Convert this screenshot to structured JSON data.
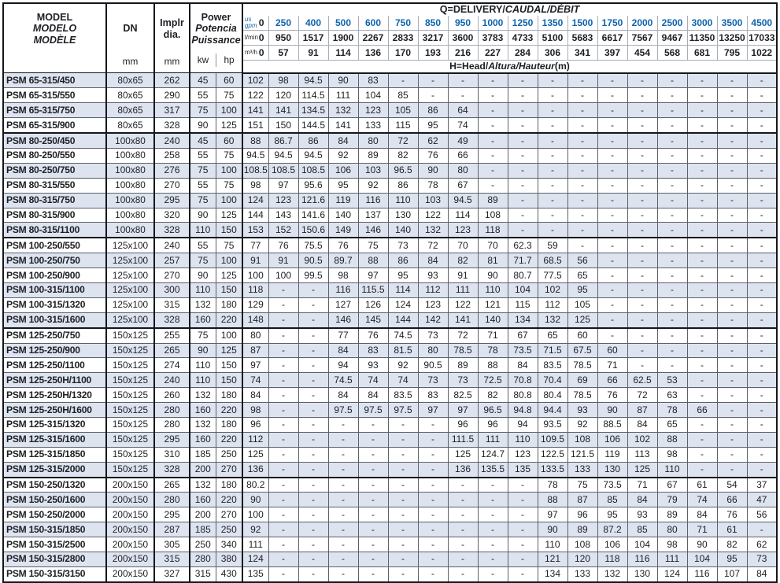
{
  "colors": {
    "accent_blue": "#0d63ab",
    "row_stripe": "#dde4f0",
    "grid_line": "#5c6068",
    "heavy_line": "#14171b",
    "text": "#1d1f24"
  },
  "header": {
    "model": {
      "line1": "MODEL",
      "line2": "MODELO",
      "line3": "MODÈLE"
    },
    "dn": {
      "label": "DN",
      "unit": "mm"
    },
    "impeller": {
      "line1": "Implr",
      "line2": "dia.",
      "unit": "mm"
    },
    "power": {
      "line1": "Power",
      "line2": "Potencia",
      "line3": "Puissance",
      "unit_kw": "kw",
      "unit_hp": "hp"
    },
    "q_title_plain": "Q=DELIVERY/",
    "q_title_italic": "CAUDAL/DÉBIT",
    "h_title_plain": "H=Head/",
    "h_title_italic": "Altura/Hauteur",
    "h_title_unit": "(m)",
    "gpm_label_top": "us",
    "gpm_label_bottom": "gpm",
    "lmin_label": "l/min",
    "m3h_label": "m³/h",
    "gpm": [
      "0",
      "250",
      "400",
      "500",
      "600",
      "750",
      "850",
      "950",
      "1000",
      "1250",
      "1350",
      "1500",
      "1750",
      "2000",
      "2500",
      "3000",
      "3500",
      "4500"
    ],
    "lmin": [
      "0",
      "950",
      "1517",
      "1900",
      "2267",
      "2833",
      "3217",
      "3600",
      "3783",
      "4733",
      "5100",
      "5683",
      "6617",
      "7567",
      "9467",
      "11350",
      "13250",
      "17033"
    ],
    "m3h": [
      "0",
      "57",
      "91",
      "114",
      "136",
      "170",
      "193",
      "216",
      "227",
      "284",
      "306",
      "341",
      "397",
      "454",
      "568",
      "681",
      "795",
      "1022"
    ]
  },
  "rows": [
    {
      "model": "PSM 65-315/450",
      "dn": "80x65",
      "dia": "262",
      "kw": "45",
      "hp": "60",
      "head": [
        "102",
        "98",
        "94.5",
        "90",
        "83",
        "-",
        "-",
        "-",
        "-",
        "-",
        "-",
        "-",
        "-",
        "-",
        "-",
        "-",
        "-",
        "-"
      ]
    },
    {
      "model": "PSM 65-315/550",
      "dn": "80x65",
      "dia": "290",
      "kw": "55",
      "hp": "75",
      "head": [
        "122",
        "120",
        "114.5",
        "111",
        "104",
        "85",
        "-",
        "-",
        "-",
        "-",
        "-",
        "-",
        "-",
        "-",
        "-",
        "-",
        "-",
        "-"
      ]
    },
    {
      "model": "PSM 65-315/750",
      "dn": "80x65",
      "dia": "317",
      "kw": "75",
      "hp": "100",
      "head": [
        "141",
        "141",
        "134.5",
        "132",
        "123",
        "105",
        "86",
        "64",
        "-",
        "-",
        "-",
        "-",
        "-",
        "-",
        "-",
        "-",
        "-",
        "-"
      ]
    },
    {
      "model": "PSM 65-315/900",
      "dn": "80x65",
      "dia": "328",
      "kw": "90",
      "hp": "125",
      "head": [
        "151",
        "150",
        "144.5",
        "141",
        "133",
        "115",
        "95",
        "74",
        "-",
        "-",
        "-",
        "-",
        "-",
        "-",
        "-",
        "-",
        "-",
        "-"
      ]
    },
    {
      "model": "PSM 80-250/450",
      "dn": "100x80",
      "dia": "240",
      "kw": "45",
      "hp": "60",
      "group": true,
      "head": [
        "88",
        "86.7",
        "86",
        "84",
        "80",
        "72",
        "62",
        "49",
        "-",
        "-",
        "-",
        "-",
        "-",
        "-",
        "-",
        "-",
        "-",
        "-"
      ]
    },
    {
      "model": "PSM 80-250/550",
      "dn": "100x80",
      "dia": "258",
      "kw": "55",
      "hp": "75",
      "head": [
        "94.5",
        "94.5",
        "94.5",
        "92",
        "89",
        "82",
        "76",
        "66",
        "-",
        "-",
        "-",
        "-",
        "-",
        "-",
        "-",
        "-",
        "-",
        "-"
      ]
    },
    {
      "model": "PSM 80-250/750",
      "dn": "100x80",
      "dia": "276",
      "kw": "75",
      "hp": "100",
      "head": [
        "108.5",
        "108.5",
        "108.5",
        "106",
        "103",
        "96.5",
        "90",
        "80",
        "-",
        "-",
        "-",
        "-",
        "-",
        "-",
        "-",
        "-",
        "-",
        "-"
      ]
    },
    {
      "model": "PSM 80-315/550",
      "dn": "100x80",
      "dia": "270",
      "kw": "55",
      "hp": "75",
      "head": [
        "98",
        "97",
        "95.6",
        "95",
        "92",
        "86",
        "78",
        "67",
        "-",
        "-",
        "-",
        "-",
        "-",
        "-",
        "-",
        "-",
        "-",
        "-"
      ]
    },
    {
      "model": "PSM 80-315/750",
      "dn": "100x80",
      "dia": "295",
      "kw": "75",
      "hp": "100",
      "head": [
        "124",
        "123",
        "121.6",
        "119",
        "116",
        "110",
        "103",
        "94.5",
        "89",
        "-",
        "-",
        "-",
        "-",
        "-",
        "-",
        "-",
        "-",
        "-"
      ]
    },
    {
      "model": "PSM 80-315/900",
      "dn": "100x80",
      "dia": "320",
      "kw": "90",
      "hp": "125",
      "head": [
        "144",
        "143",
        "141.6",
        "140",
        "137",
        "130",
        "122",
        "114",
        "108",
        "-",
        "-",
        "-",
        "-",
        "-",
        "-",
        "-",
        "-",
        "-"
      ]
    },
    {
      "model": "PSM 80-315/1100",
      "dn": "100x80",
      "dia": "328",
      "kw": "110",
      "hp": "150",
      "head": [
        "153",
        "152",
        "150.6",
        "149",
        "146",
        "140",
        "132",
        "123",
        "118",
        "-",
        "-",
        "-",
        "-",
        "-",
        "-",
        "-",
        "-",
        "-"
      ]
    },
    {
      "model": "PSM 100-250/550",
      "dn": "125x100",
      "dia": "240",
      "kw": "55",
      "hp": "75",
      "group": true,
      "head": [
        "77",
        "76",
        "75.5",
        "76",
        "75",
        "73",
        "72",
        "70",
        "70",
        "62.3",
        "59",
        "-",
        "-",
        "-",
        "-",
        "-",
        "-",
        "-"
      ]
    },
    {
      "model": "PSM 100-250/750",
      "dn": "125x100",
      "dia": "257",
      "kw": "75",
      "hp": "100",
      "head": [
        "91",
        "91",
        "90.5",
        "89.7",
        "88",
        "86",
        "84",
        "82",
        "81",
        "71.7",
        "68.5",
        "56",
        "-",
        "-",
        "-",
        "-",
        "-",
        "-"
      ]
    },
    {
      "model": "PSM 100-250/900",
      "dn": "125x100",
      "dia": "270",
      "kw": "90",
      "hp": "125",
      "head": [
        "100",
        "100",
        "99.5",
        "98",
        "97",
        "95",
        "93",
        "91",
        "90",
        "80.7",
        "77.5",
        "65",
        "-",
        "-",
        "-",
        "-",
        "-",
        "-"
      ]
    },
    {
      "model": "PSM 100-315/1100",
      "dn": "125x100",
      "dia": "300",
      "kw": "110",
      "hp": "150",
      "head": [
        "118",
        "-",
        "-",
        "116",
        "115.5",
        "114",
        "112",
        "111",
        "110",
        "104",
        "102",
        "95",
        "-",
        "-",
        "-",
        "-",
        "-",
        "-"
      ]
    },
    {
      "model": "PSM 100-315/1320",
      "dn": "125x100",
      "dia": "315",
      "kw": "132",
      "hp": "180",
      "head": [
        "129",
        "-",
        "-",
        "127",
        "126",
        "124",
        "123",
        "122",
        "121",
        "115",
        "112",
        "105",
        "-",
        "-",
        "-",
        "-",
        "-",
        "-"
      ]
    },
    {
      "model": "PSM 100-315/1600",
      "dn": "125x100",
      "dia": "328",
      "kw": "160",
      "hp": "220",
      "head": [
        "148",
        "-",
        "-",
        "146",
        "145",
        "144",
        "142",
        "141",
        "140",
        "134",
        "132",
        "125",
        "-",
        "-",
        "-",
        "-",
        "-",
        "-"
      ]
    },
    {
      "model": "PSM 125-250/750",
      "dn": "150x125",
      "dia": "255",
      "kw": "75",
      "hp": "100",
      "group": true,
      "head": [
        "80",
        "-",
        "-",
        "77",
        "76",
        "74.5",
        "73",
        "72",
        "71",
        "67",
        "65",
        "60",
        "-",
        "-",
        "-",
        "-",
        "-",
        "-"
      ]
    },
    {
      "model": "PSM 125-250/900",
      "dn": "150x125",
      "dia": "265",
      "kw": "90",
      "hp": "125",
      "head": [
        "87",
        "-",
        "-",
        "84",
        "83",
        "81.5",
        "80",
        "78.5",
        "78",
        "73.5",
        "71.5",
        "67.5",
        "60",
        "-",
        "-",
        "-",
        "-",
        "-"
      ]
    },
    {
      "model": "PSM 125-250/1100",
      "dn": "150x125",
      "dia": "274",
      "kw": "110",
      "hp": "150",
      "head": [
        "97",
        "-",
        "-",
        "94",
        "93",
        "92",
        "90.5",
        "89",
        "88",
        "84",
        "83.5",
        "78.5",
        "71",
        "-",
        "-",
        "-",
        "-",
        "-"
      ]
    },
    {
      "model": "PSM 125-250H/1100",
      "dn": "150x125",
      "dia": "240",
      "kw": "110",
      "hp": "150",
      "head": [
        "74",
        "-",
        "-",
        "74.5",
        "74",
        "74",
        "73",
        "73",
        "72.5",
        "70.8",
        "70.4",
        "69",
        "66",
        "62.5",
        "53",
        "-",
        "-",
        "-"
      ]
    },
    {
      "model": "PSM 125-250H/1320",
      "dn": "150x125",
      "dia": "260",
      "kw": "132",
      "hp": "180",
      "head": [
        "84",
        "-",
        "-",
        "84",
        "84",
        "83.5",
        "83",
        "82.5",
        "82",
        "80.8",
        "80.4",
        "78.5",
        "76",
        "72",
        "63",
        "-",
        "-",
        "-"
      ]
    },
    {
      "model": "PSM 125-250H/1600",
      "dn": "150x125",
      "dia": "280",
      "kw": "160",
      "hp": "220",
      "head": [
        "98",
        "-",
        "-",
        "97.5",
        "97.5",
        "97.5",
        "97",
        "97",
        "96.5",
        "94.8",
        "94.4",
        "93",
        "90",
        "87",
        "78",
        "66",
        "-",
        "-"
      ]
    },
    {
      "model": "PSM 125-315/1320",
      "dn": "150x125",
      "dia": "280",
      "kw": "132",
      "hp": "180",
      "head": [
        "96",
        "-",
        "-",
        "-",
        "-",
        "-",
        "-",
        "96",
        "96",
        "94",
        "93.5",
        "92",
        "88.5",
        "84",
        "65",
        "-",
        "-",
        "-"
      ]
    },
    {
      "model": "PSM 125-315/1600",
      "dn": "150x125",
      "dia": "295",
      "kw": "160",
      "hp": "220",
      "head": [
        "112",
        "-",
        "-",
        "-",
        "-",
        "-",
        "-",
        "111.5",
        "111",
        "110",
        "109.5",
        "108",
        "106",
        "102",
        "88",
        "-",
        "-",
        "-"
      ]
    },
    {
      "model": "PSM 125-315/1850",
      "dn": "150x125",
      "dia": "310",
      "kw": "185",
      "hp": "250",
      "head": [
        "125",
        "-",
        "-",
        "-",
        "-",
        "-",
        "-",
        "125",
        "124.7",
        "123",
        "122.5",
        "121.5",
        "119",
        "113",
        "98",
        "-",
        "-",
        "-"
      ]
    },
    {
      "model": "PSM 125-315/2000",
      "dn": "150x125",
      "dia": "328",
      "kw": "200",
      "hp": "270",
      "head": [
        "136",
        "-",
        "-",
        "-",
        "-",
        "-",
        "-",
        "136",
        "135.5",
        "135",
        "133.5",
        "133",
        "130",
        "125",
        "110",
        "-",
        "-",
        "-"
      ]
    },
    {
      "model": "PSM 150-250/1320",
      "dn": "200x150",
      "dia": "265",
      "kw": "132",
      "hp": "180",
      "group": true,
      "head": [
        "80.2",
        "-",
        "-",
        "-",
        "-",
        "-",
        "-",
        "-",
        "-",
        "-",
        "78",
        "75",
        "73.5",
        "71",
        "67",
        "61",
        "54",
        "37"
      ]
    },
    {
      "model": "PSM 150-250/1600",
      "dn": "200x150",
      "dia": "280",
      "kw": "160",
      "hp": "220",
      "head": [
        "90",
        "-",
        "-",
        "-",
        "-",
        "-",
        "-",
        "-",
        "-",
        "-",
        "88",
        "87",
        "85",
        "84",
        "79",
        "74",
        "66",
        "47"
      ]
    },
    {
      "model": "PSM 150-250/2000",
      "dn": "200x150",
      "dia": "295",
      "kw": "200",
      "hp": "270",
      "head": [
        "100",
        "-",
        "-",
        "-",
        "-",
        "-",
        "-",
        "-",
        "-",
        "-",
        "97",
        "96",
        "95",
        "93",
        "89",
        "84",
        "76",
        "56"
      ]
    },
    {
      "model": "PSM 150-315/1850",
      "dn": "200x150",
      "dia": "287",
      "kw": "185",
      "hp": "250",
      "head": [
        "92",
        "-",
        "-",
        "-",
        "-",
        "-",
        "-",
        "-",
        "-",
        "-",
        "90",
        "89",
        "87.2",
        "85",
        "80",
        "71",
        "61",
        "-"
      ]
    },
    {
      "model": "PSM 150-315/2500",
      "dn": "200x150",
      "dia": "305",
      "kw": "250",
      "hp": "340",
      "head": [
        "111",
        "-",
        "-",
        "-",
        "-",
        "-",
        "-",
        "-",
        "-",
        "-",
        "110",
        "108",
        "106",
        "104",
        "98",
        "90",
        "82",
        "62"
      ]
    },
    {
      "model": "PSM 150-315/2800",
      "dn": "200x150",
      "dia": "315",
      "kw": "280",
      "hp": "380",
      "head": [
        "124",
        "-",
        "-",
        "-",
        "-",
        "-",
        "-",
        "-",
        "-",
        "-",
        "121",
        "120",
        "118",
        "116",
        "111",
        "104",
        "95",
        "73"
      ]
    },
    {
      "model": "PSM 150-315/3150",
      "dn": "200x150",
      "dia": "327",
      "kw": "315",
      "hp": "430",
      "head": [
        "135",
        "-",
        "-",
        "-",
        "-",
        "-",
        "-",
        "-",
        "-",
        "-",
        "134",
        "133",
        "132",
        "130",
        "124",
        "116",
        "107",
        "84"
      ]
    }
  ]
}
